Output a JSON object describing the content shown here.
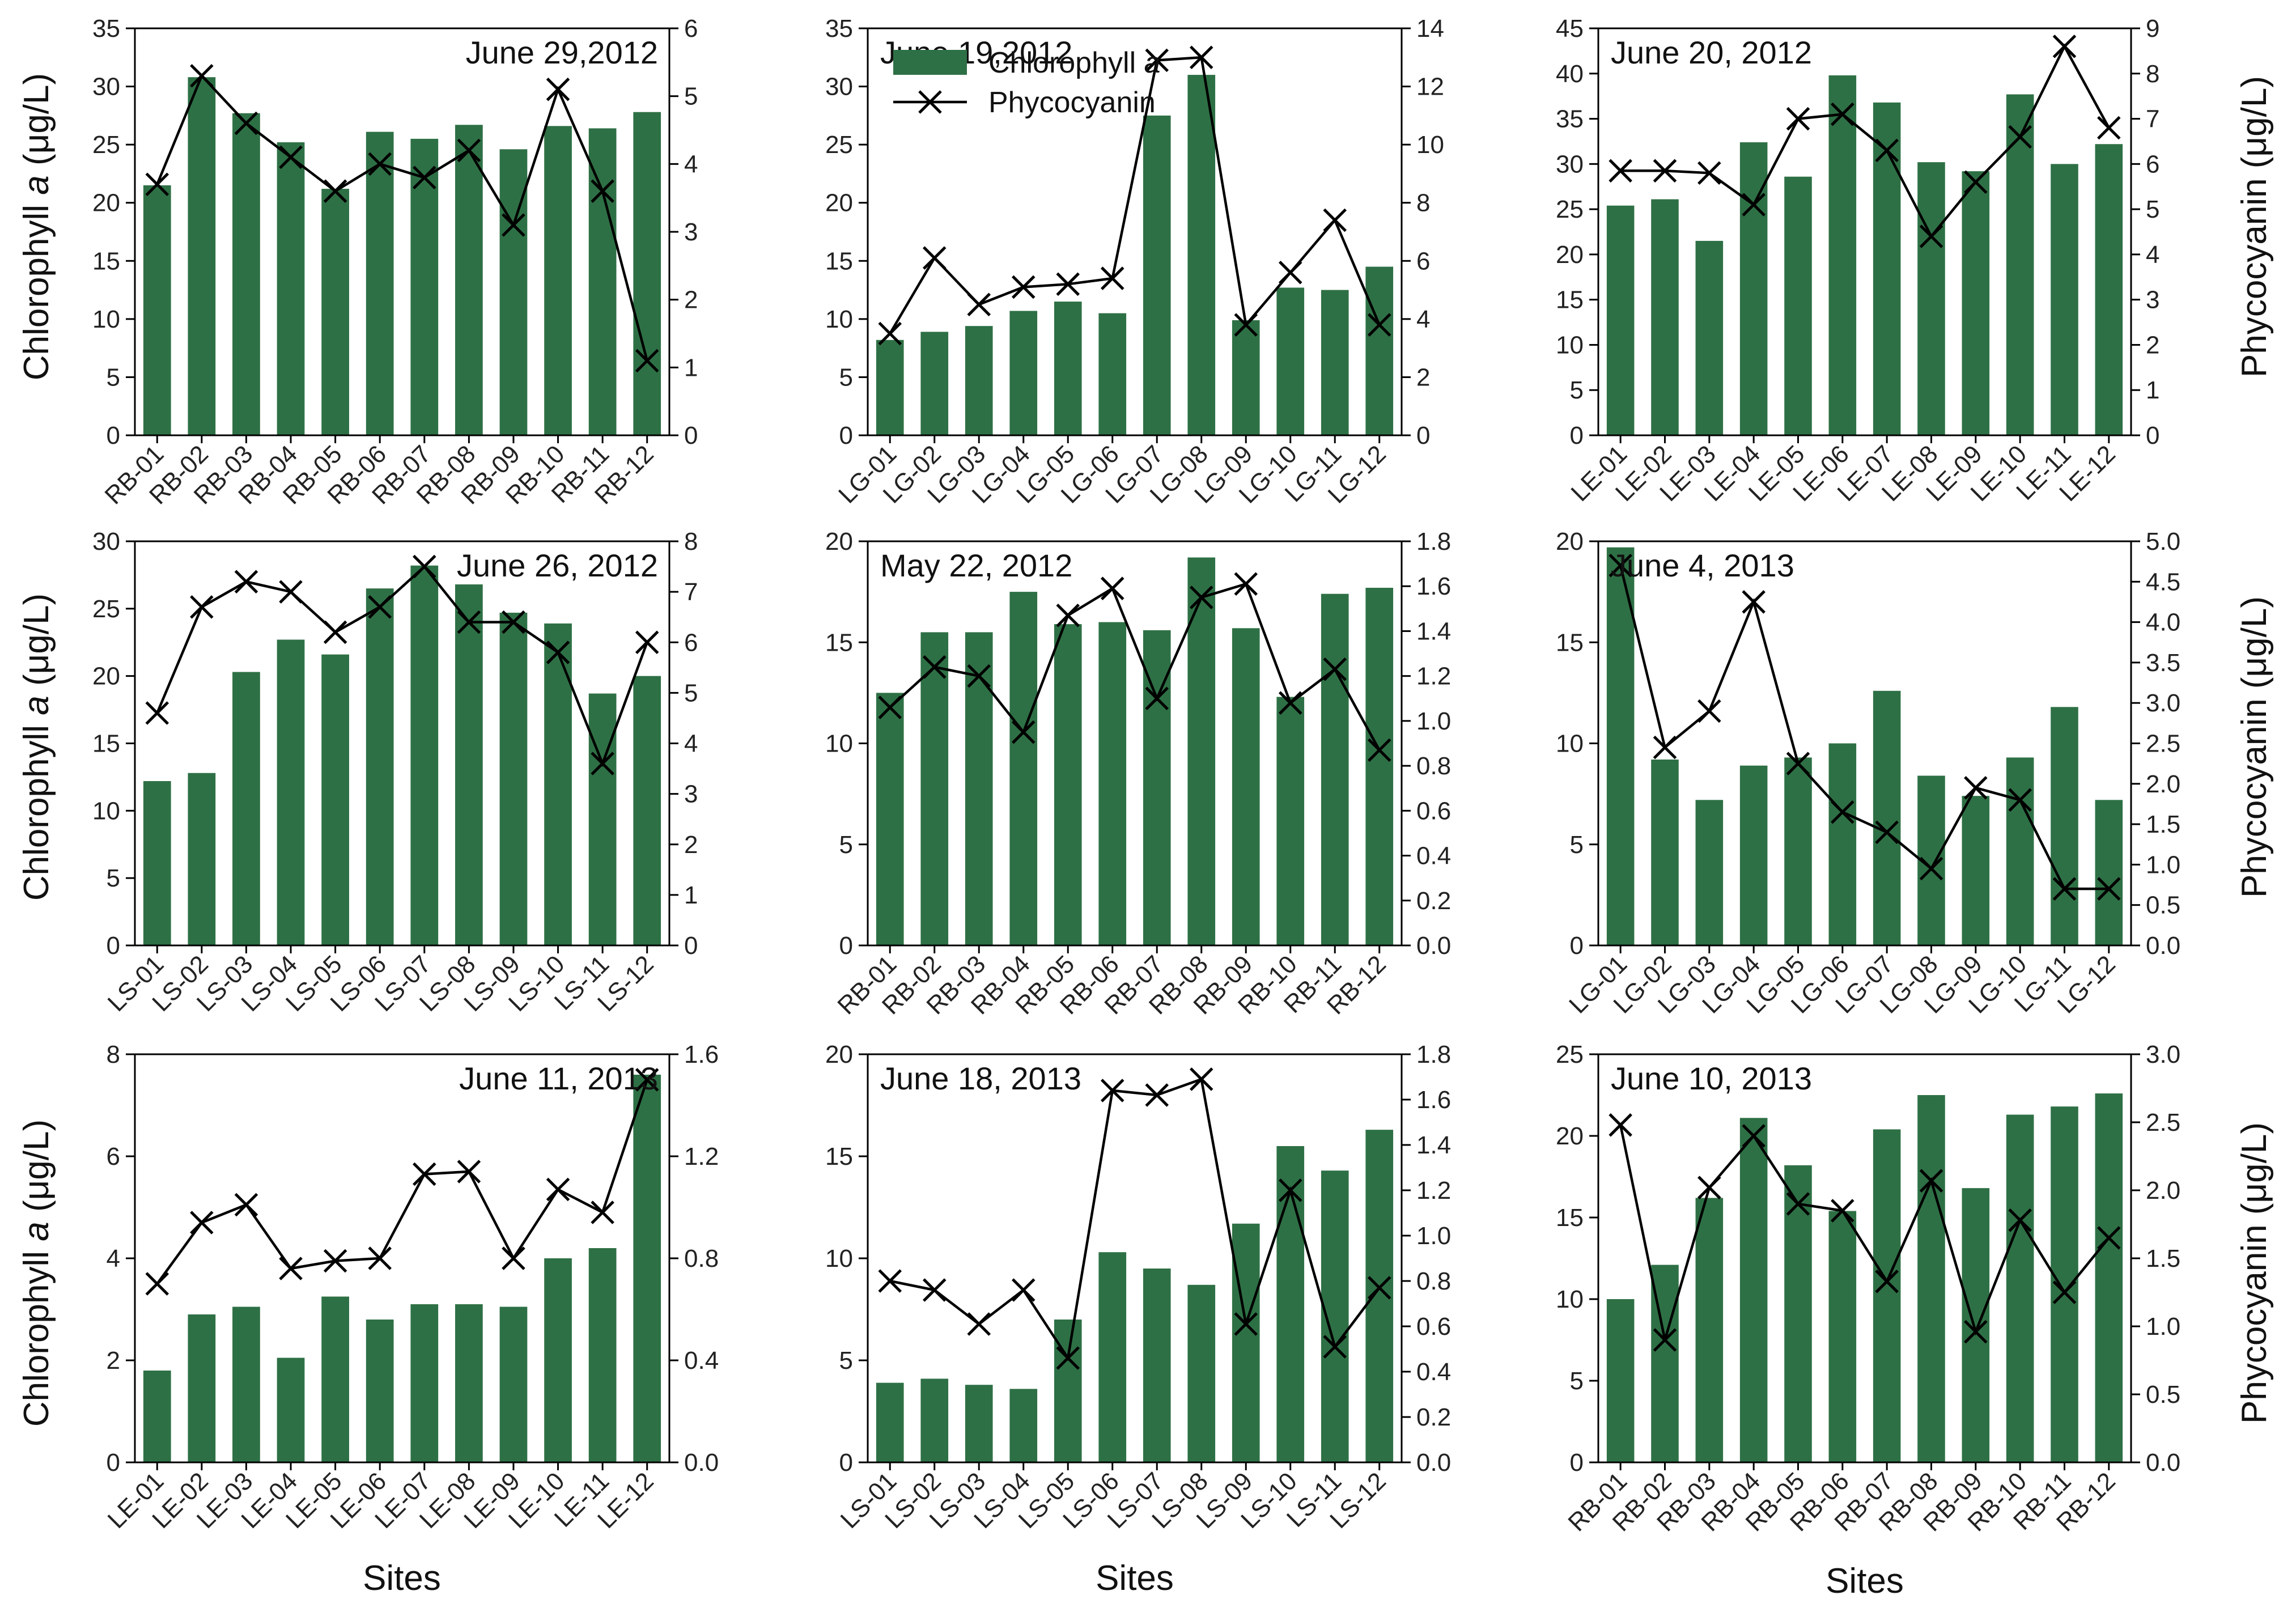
{
  "colors": {
    "bar": "#2e7045",
    "line": "#000000",
    "axis": "#000000"
  },
  "figure": {
    "left_axis_label_prefix": "Chlorophyll ",
    "left_axis_label_italic": "a",
    "left_axis_label_suffix": " (μg/L)",
    "right_axis_label": "Phycocyanin  (μg/L)",
    "x_axis_label": "Sites",
    "legend": [
      {
        "name": "Chlorophyll a",
        "symbol": "bar"
      },
      {
        "name": "Phycocyanin",
        "symbol": "line-x"
      }
    ]
  },
  "chart_data": [
    {
      "type": "bar+line",
      "title": "June 29,2012",
      "categories": [
        "RB-01",
        "RB-02",
        "RB-03",
        "RB-04",
        "RB-05",
        "RB-06",
        "RB-07",
        "RB-08",
        "RB-09",
        "RB-10",
        "RB-11",
        "RB-12"
      ],
      "series": [
        {
          "name": "Chlorophyll a",
          "type": "bar",
          "axis": "left",
          "values": [
            21.5,
            30.8,
            27.7,
            25.2,
            21.2,
            26.1,
            25.5,
            26.7,
            24.6,
            26.6,
            26.4,
            27.8
          ]
        },
        {
          "name": "Phycocyanin",
          "type": "line",
          "axis": "right",
          "values": [
            3.7,
            5.3,
            4.6,
            4.1,
            3.6,
            4.0,
            3.8,
            4.2,
            3.1,
            5.1,
            3.6,
            1.1
          ]
        }
      ],
      "ylim_left": [
        0,
        35
      ],
      "yticks_left": [
        0,
        5,
        10,
        15,
        20,
        25,
        30,
        35
      ],
      "yticks_left_labels": [
        "0",
        "5",
        "10",
        "15",
        "20",
        "25",
        "30",
        "35"
      ],
      "ylim_right": [
        0,
        6
      ],
      "yticks_right": [
        0,
        1,
        2,
        3,
        4,
        5,
        6
      ],
      "yticks_right_labels": [
        "0",
        "1",
        "2",
        "3",
        "4",
        "5",
        "6"
      ]
    },
    {
      "type": "bar+line",
      "title": "June 19,2012",
      "categories": [
        "LG-01",
        "LG-02",
        "LG-03",
        "LG-04",
        "LG-05",
        "LG-06",
        "LG-07",
        "LG-08",
        "LG-09",
        "LG-10",
        "LG-11",
        "LG-12"
      ],
      "series": [
        {
          "name": "Chlorophyll a",
          "type": "bar",
          "axis": "left",
          "values": [
            8.2,
            8.9,
            9.4,
            10.7,
            11.5,
            10.5,
            27.5,
            31.0,
            9.9,
            12.7,
            12.5,
            14.5
          ]
        },
        {
          "name": "Phycocyanin",
          "type": "line",
          "axis": "right",
          "values": [
            3.5,
            6.1,
            4.5,
            5.1,
            5.2,
            5.4,
            12.9,
            13.0,
            3.8,
            5.6,
            7.4,
            3.8
          ]
        }
      ],
      "ylim_left": [
        0,
        35
      ],
      "yticks_left": [
        0,
        5,
        10,
        15,
        20,
        25,
        30,
        35
      ],
      "yticks_left_labels": [
        "0",
        "5",
        "10",
        "15",
        "20",
        "25",
        "30",
        "35"
      ],
      "ylim_right": [
        0,
        14
      ],
      "yticks_right": [
        0,
        2,
        4,
        6,
        8,
        10,
        12,
        14
      ],
      "yticks_right_labels": [
        "0",
        "2",
        "4",
        "6",
        "8",
        "10",
        "12",
        "14"
      ],
      "legend": true
    },
    {
      "type": "bar+line",
      "title": "June 20, 2012",
      "categories": [
        "LE-01",
        "LE-02",
        "LE-03",
        "LE-04",
        "LE-05",
        "LE-06",
        "LE-07",
        "LE-08",
        "LE-09",
        "LE-10",
        "LE-11",
        "LE-12"
      ],
      "series": [
        {
          "name": "Chlorophyll a",
          "type": "bar",
          "axis": "left",
          "values": [
            25.4,
            26.1,
            21.5,
            32.4,
            28.6,
            39.8,
            36.8,
            30.2,
            29.2,
            37.7,
            30.0,
            32.2
          ]
        },
        {
          "name": "Phycocyanin",
          "type": "line",
          "axis": "right",
          "values": [
            5.85,
            5.85,
            5.8,
            5.1,
            7.0,
            7.1,
            6.3,
            4.4,
            5.6,
            6.6,
            8.6,
            6.8
          ]
        }
      ],
      "ylim_left": [
        0,
        45
      ],
      "yticks_left": [
        0,
        5,
        10,
        15,
        20,
        25,
        30,
        35,
        40,
        45
      ],
      "yticks_left_labels": [
        "0",
        "5",
        "10",
        "15",
        "20",
        "25",
        "30",
        "35",
        "40",
        "45"
      ],
      "ylim_right": [
        0,
        9
      ],
      "yticks_right": [
        0,
        1,
        2,
        3,
        4,
        5,
        6,
        7,
        8,
        9
      ],
      "yticks_right_labels": [
        "0",
        "1",
        "2",
        "3",
        "4",
        "5",
        "6",
        "7",
        "8",
        "9"
      ]
    },
    {
      "type": "bar+line",
      "title": "June 26, 2012",
      "categories": [
        "LS-01",
        "LS-02",
        "LS-03",
        "LS-04",
        "LS-05",
        "LS-06",
        "LS-07",
        "LS-08",
        "LS-09",
        "LS-10",
        "LS-11",
        "LS-12"
      ],
      "series": [
        {
          "name": "Chlorophyll a",
          "type": "bar",
          "axis": "left",
          "values": [
            12.2,
            12.8,
            20.3,
            22.7,
            21.6,
            26.5,
            28.2,
            26.8,
            24.7,
            23.9,
            18.7,
            20.0
          ]
        },
        {
          "name": "Phycocyanin",
          "type": "line",
          "axis": "right",
          "values": [
            4.6,
            6.7,
            7.2,
            7.0,
            6.2,
            6.7,
            7.5,
            6.4,
            6.4,
            5.8,
            3.6,
            6.0
          ]
        }
      ],
      "ylim_left": [
        0,
        30
      ],
      "yticks_left": [
        0,
        5,
        10,
        15,
        20,
        25,
        30
      ],
      "yticks_left_labels": [
        "0",
        "5",
        "10",
        "15",
        "20",
        "25",
        "30"
      ],
      "ylim_right": [
        0,
        8
      ],
      "yticks_right": [
        0,
        1,
        2,
        3,
        4,
        5,
        6,
        7,
        8
      ],
      "yticks_right_labels": [
        "0",
        "1",
        "2",
        "3",
        "4",
        "5",
        "6",
        "7",
        "8"
      ]
    },
    {
      "type": "bar+line",
      "title": "May 22, 2012",
      "categories": [
        "RB-01",
        "RB-02",
        "RB-03",
        "RB-04",
        "RB-05",
        "RB-06",
        "RB-07",
        "RB-08",
        "RB-09",
        "RB-10",
        "RB-11",
        "RB-12"
      ],
      "series": [
        {
          "name": "Chlorophyll a",
          "type": "bar",
          "axis": "left",
          "values": [
            12.5,
            15.5,
            15.5,
            17.5,
            15.9,
            16.0,
            15.6,
            19.2,
            15.7,
            12.3,
            17.4,
            17.7
          ]
        },
        {
          "name": "Phycocyanin",
          "type": "line",
          "axis": "right",
          "values": [
            1.06,
            1.24,
            1.2,
            0.95,
            1.47,
            1.59,
            1.1,
            1.55,
            1.61,
            1.08,
            1.23,
            0.87
          ]
        }
      ],
      "ylim_left": [
        0,
        20
      ],
      "yticks_left": [
        0,
        5,
        10,
        15,
        20
      ],
      "yticks_left_labels": [
        "0",
        "5",
        "10",
        "15",
        "20"
      ],
      "ylim_right": [
        0,
        1.8
      ],
      "yticks_right": [
        0,
        0.2,
        0.4,
        0.6,
        0.8,
        1.0,
        1.2,
        1.4,
        1.6,
        1.8
      ],
      "yticks_right_labels": [
        "0.0",
        "0.2",
        "0.4",
        "0.6",
        "0.8",
        "1.0",
        "1.2",
        "1.4",
        "1.6",
        "1.8"
      ]
    },
    {
      "type": "bar+line",
      "title": "June 4, 2013",
      "categories": [
        "LG-01",
        "LG-02",
        "LG-03",
        "LG-04",
        "LG-05",
        "LG-06",
        "LG-07",
        "LG-08",
        "LG-09",
        "LG-10",
        "LG-11",
        "LG-12"
      ],
      "series": [
        {
          "name": "Chlorophyll a",
          "type": "bar",
          "axis": "left",
          "values": [
            19.7,
            9.2,
            7.2,
            8.9,
            9.3,
            10.0,
            12.6,
            8.4,
            7.4,
            9.3,
            11.8,
            7.2
          ]
        },
        {
          "name": "Phycocyanin",
          "type": "line",
          "axis": "right",
          "values": [
            4.7,
            2.45,
            2.9,
            4.25,
            2.25,
            1.65,
            1.4,
            0.95,
            1.95,
            1.8,
            0.7,
            0.7
          ]
        }
      ],
      "ylim_left": [
        0,
        20
      ],
      "yticks_left": [
        0,
        5,
        10,
        15,
        20
      ],
      "yticks_left_labels": [
        "0",
        "5",
        "10",
        "15",
        "20"
      ],
      "ylim_right": [
        0,
        5
      ],
      "yticks_right": [
        0,
        0.5,
        1,
        1.5,
        2,
        2.5,
        3,
        3.5,
        4,
        4.5,
        5
      ],
      "yticks_right_labels": [
        "0.0",
        "0.5",
        "1.0",
        "1.5",
        "2.0",
        "2.5",
        "3.0",
        "3.5",
        "4.0",
        "4.5",
        "5.0"
      ]
    },
    {
      "type": "bar+line",
      "title": "June 11, 2013",
      "categories": [
        "LE-01",
        "LE-02",
        "LE-03",
        "LE-04",
        "LE-05",
        "LE-06",
        "LE-07",
        "LE-08",
        "LE-09",
        "LE-10",
        "LE-11",
        "LE-12"
      ],
      "series": [
        {
          "name": "Chlorophyll a",
          "type": "bar",
          "axis": "left",
          "values": [
            1.8,
            2.9,
            3.05,
            2.05,
            3.25,
            2.8,
            3.1,
            3.1,
            3.05,
            4.0,
            4.2,
            7.6
          ]
        },
        {
          "name": "Phycocyanin",
          "type": "line",
          "axis": "right",
          "values": [
            0.7,
            0.94,
            1.01,
            0.76,
            0.79,
            0.8,
            1.13,
            1.14,
            0.8,
            1.07,
            0.98,
            1.5
          ]
        }
      ],
      "ylim_left": [
        0,
        8
      ],
      "yticks_left": [
        0,
        2,
        4,
        6,
        8
      ],
      "yticks_left_labels": [
        "0",
        "2",
        "4",
        "6",
        "8"
      ],
      "ylim_right": [
        0,
        1.6
      ],
      "yticks_right": [
        0,
        0.4,
        0.8,
        1.2,
        1.6
      ],
      "yticks_right_labels": [
        "0.0",
        "0.4",
        "0.8",
        "1.2",
        "1.6"
      ]
    },
    {
      "type": "bar+line",
      "title": "June 18, 2013",
      "categories": [
        "LS-01",
        "LS-02",
        "LS-03",
        "LS-04",
        "LS-05",
        "LS-06",
        "LS-07",
        "LS-08",
        "LS-09",
        "LS-10",
        "LS-11",
        "LS-12"
      ],
      "series": [
        {
          "name": "Chlorophyll a",
          "type": "bar",
          "axis": "left",
          "values": [
            3.9,
            4.1,
            3.8,
            3.6,
            7.0,
            10.3,
            9.5,
            8.7,
            11.7,
            15.5,
            14.3,
            16.3
          ]
        },
        {
          "name": "Phycocyanin",
          "type": "line",
          "axis": "right",
          "values": [
            0.8,
            0.76,
            0.61,
            0.76,
            0.46,
            1.64,
            1.62,
            1.69,
            0.61,
            1.2,
            0.51,
            0.77
          ]
        }
      ],
      "ylim_left": [
        0,
        20
      ],
      "yticks_left": [
        0,
        5,
        10,
        15,
        20
      ],
      "yticks_left_labels": [
        "0",
        "5",
        "10",
        "15",
        "20"
      ],
      "ylim_right": [
        0,
        1.8
      ],
      "yticks_right": [
        0,
        0.2,
        0.4,
        0.6,
        0.8,
        1.0,
        1.2,
        1.4,
        1.6,
        1.8
      ],
      "yticks_right_labels": [
        "0.0",
        "0.2",
        "0.4",
        "0.6",
        "0.8",
        "1.0",
        "1.2",
        "1.4",
        "1.6",
        "1.8"
      ]
    },
    {
      "type": "bar+line",
      "title": "June 10, 2013",
      "categories": [
        "RB-01",
        "RB-02",
        "RB-03",
        "RB-04",
        "RB-05",
        "RB-06",
        "RB-07",
        "RB-08",
        "RB-09",
        "RB-10",
        "RB-11",
        "RB-12"
      ],
      "series": [
        {
          "name": "Chlorophyll a",
          "type": "bar",
          "axis": "left",
          "values": [
            10.0,
            12.1,
            16.2,
            21.1,
            18.2,
            15.4,
            20.4,
            22.5,
            16.8,
            21.3,
            21.8,
            22.6
          ]
        },
        {
          "name": "Phycocyanin",
          "type": "line",
          "axis": "right",
          "values": [
            2.48,
            0.9,
            2.02,
            2.4,
            1.9,
            1.85,
            1.33,
            2.07,
            0.96,
            1.78,
            1.25,
            1.65
          ]
        }
      ],
      "ylim_left": [
        0,
        25
      ],
      "yticks_left": [
        0,
        5,
        10,
        15,
        20,
        25
      ],
      "yticks_left_labels": [
        "0",
        "5",
        "10",
        "15",
        "20",
        "25"
      ],
      "ylim_right": [
        0,
        3
      ],
      "yticks_right": [
        0,
        0.5,
        1,
        1.5,
        2,
        2.5,
        3
      ],
      "yticks_right_labels": [
        "0.0",
        "0.5",
        "1.0",
        "1.5",
        "2.0",
        "2.5",
        "3.0"
      ]
    }
  ]
}
